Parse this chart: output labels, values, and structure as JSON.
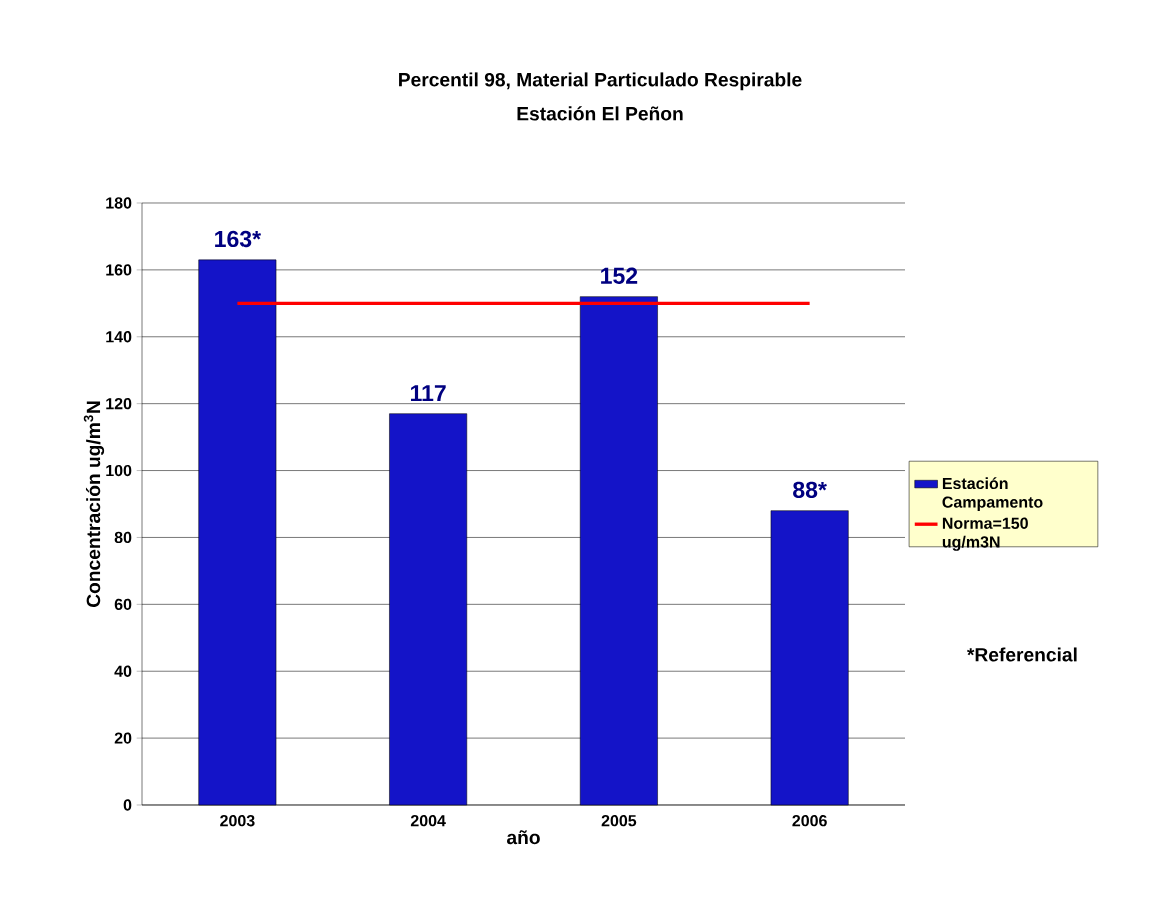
{
  "chart_data": {
    "type": "bar",
    "title": "Percentil 98, Material Particulado Respirable",
    "subtitle": "Estación El Peñon",
    "xlabel": "año",
    "ylabel": "Concentración ug/m$^{3}$N",
    "categories": [
      "2003",
      "2004",
      "2005",
      "2006"
    ],
    "series": [
      {
        "name": "Estación Campamento",
        "color": "#1414c8",
        "values": [
          163,
          117,
          152,
          88
        ],
        "value_labels": [
          "163*",
          "117",
          "152",
          "88*"
        ]
      },
      {
        "name": "Norma=150 ug/m3N",
        "type": "line",
        "color": "#ff0000",
        "values": [
          150,
          150,
          150,
          150
        ]
      }
    ],
    "ylim": [
      0,
      180
    ],
    "yticks": [
      0,
      20,
      40,
      60,
      80,
      100,
      120,
      140,
      160,
      180
    ],
    "grid": "y",
    "legend": "right",
    "annotations": [
      "*Referencial"
    ]
  }
}
